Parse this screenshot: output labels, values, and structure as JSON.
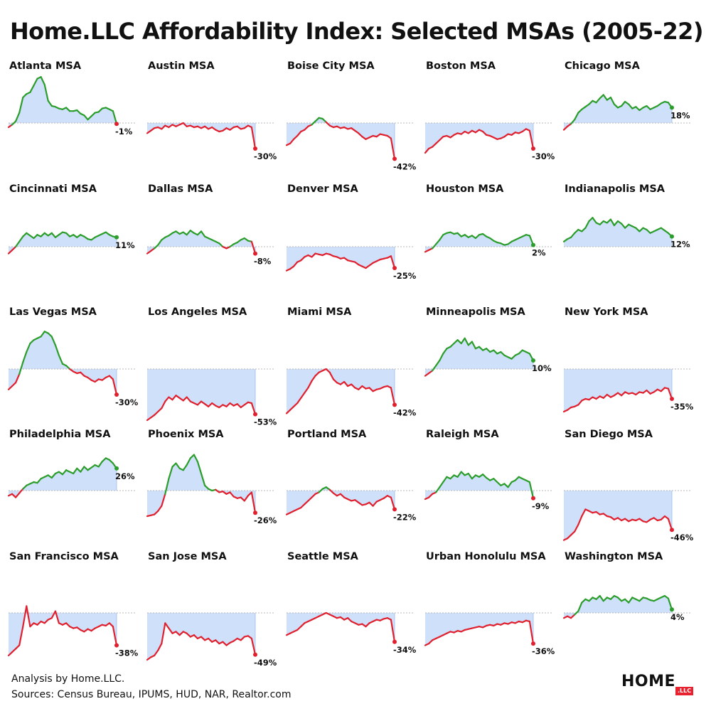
{
  "title": "Home.LLC Affordability Index: Selected MSAs (2005-22)",
  "footer": {
    "analysis": "Analysis by Home.LLC.",
    "sources": "Sources: Census Bureau, IPUMS, HUD, NAR, Realtor.com"
  },
  "logo": {
    "word": "HOME",
    "badge": ".LLC"
  },
  "colors": {
    "positive": "#2a9d2a",
    "negative": "#e0202e",
    "fill": "#cfe0fa",
    "baseline": "#b9b9b9",
    "dot": "#e0202e"
  },
  "chart_data": [
    {
      "type": "area",
      "title": "Atlanta MSA",
      "last_label": "-1%",
      "values": [
        -5,
        -2,
        2,
        12,
        30,
        34,
        36,
        44,
        52,
        54,
        45,
        26,
        20,
        19,
        17,
        16,
        18,
        14,
        14,
        15,
        11,
        9,
        4,
        8,
        12,
        13,
        17,
        18,
        16,
        14,
        -1
      ]
    },
    {
      "type": "area",
      "title": "Austin MSA",
      "last_label": "-30%",
      "values": [
        -12,
        -9,
        -6,
        -5,
        -7,
        -3,
        -5,
        -2,
        -4,
        -2,
        0,
        -4,
        -3,
        -5,
        -4,
        -6,
        -4,
        -7,
        -5,
        -8,
        -10,
        -9,
        -6,
        -8,
        -5,
        -4,
        -7,
        -6,
        -3,
        -5,
        -30
      ]
    },
    {
      "type": "area",
      "title": "Boise City MSA",
      "last_label": "-42%",
      "values": [
        -26,
        -24,
        -19,
        -15,
        -10,
        -8,
        -4,
        -2,
        2,
        6,
        5,
        1,
        -3,
        -5,
        -4,
        -6,
        -5,
        -7,
        -6,
        -9,
        -12,
        -16,
        -19,
        -17,
        -15,
        -16,
        -13,
        -14,
        -15,
        -18,
        -42
      ]
    },
    {
      "type": "area",
      "title": "Boston MSA",
      "last_label": "-30%",
      "values": [
        -35,
        -30,
        -28,
        -24,
        -20,
        -16,
        -15,
        -17,
        -14,
        -12,
        -13,
        -10,
        -12,
        -9,
        -11,
        -8,
        -10,
        -14,
        -15,
        -17,
        -19,
        -18,
        -16,
        -13,
        -14,
        -11,
        -12,
        -10,
        -7,
        -9,
        -30
      ]
    },
    {
      "type": "area",
      "title": "Chicago MSA",
      "last_label": "18%",
      "values": [
        -8,
        -4,
        -1,
        4,
        12,
        16,
        19,
        22,
        26,
        24,
        29,
        33,
        27,
        30,
        22,
        18,
        20,
        25,
        22,
        17,
        19,
        15,
        18,
        20,
        16,
        18,
        20,
        23,
        25,
        24,
        18
      ]
    },
    {
      "type": "area",
      "title": "Cincinnati MSA",
      "last_label": "11%",
      "values": [
        -8,
        -4,
        0,
        6,
        12,
        16,
        13,
        10,
        14,
        12,
        16,
        13,
        16,
        11,
        14,
        17,
        16,
        12,
        14,
        11,
        14,
        12,
        9,
        8,
        11,
        13,
        15,
        17,
        14,
        12,
        11
      ]
    },
    {
      "type": "area",
      "title": "Dallas MSA",
      "last_label": "-8%",
      "values": [
        -8,
        -5,
        -2,
        2,
        8,
        11,
        13,
        16,
        18,
        15,
        17,
        14,
        19,
        16,
        14,
        18,
        12,
        10,
        8,
        6,
        4,
        0,
        -2,
        0,
        3,
        5,
        8,
        10,
        7,
        6,
        -8
      ]
    },
    {
      "type": "area",
      "title": "Denver MSA",
      "last_label": "-25%",
      "values": [
        -28,
        -26,
        -23,
        -18,
        -16,
        -12,
        -10,
        -12,
        -8,
        -9,
        -10,
        -8,
        -9,
        -11,
        -12,
        -14,
        -13,
        -16,
        -17,
        -18,
        -21,
        -23,
        -25,
        -22,
        -19,
        -17,
        -15,
        -14,
        -13,
        -11,
        -25
      ]
    },
    {
      "type": "area",
      "title": "Houston MSA",
      "last_label": "2%",
      "values": [
        -6,
        -4,
        -2,
        3,
        8,
        14,
        16,
        17,
        15,
        16,
        12,
        14,
        11,
        13,
        10,
        14,
        15,
        12,
        10,
        7,
        5,
        4,
        2,
        3,
        6,
        8,
        10,
        12,
        14,
        13,
        2
      ]
    },
    {
      "type": "area",
      "title": "Indianapolis MSA",
      "last_label": "12%",
      "values": [
        6,
        9,
        11,
        16,
        20,
        18,
        22,
        30,
        34,
        28,
        26,
        30,
        28,
        32,
        25,
        30,
        27,
        22,
        26,
        24,
        22,
        18,
        22,
        20,
        16,
        18,
        20,
        22,
        19,
        16,
        12
      ]
    },
    {
      "type": "area",
      "title": "Las Vegas MSA",
      "last_label": "-30%",
      "values": [
        -24,
        -20,
        -16,
        -6,
        8,
        20,
        30,
        34,
        36,
        38,
        44,
        42,
        38,
        28,
        16,
        6,
        4,
        0,
        -3,
        -5,
        -4,
        -8,
        -10,
        -13,
        -15,
        -12,
        -13,
        -10,
        -8,
        -12,
        -30
      ]
    },
    {
      "type": "area",
      "title": "Los Angeles MSA",
      "last_label": "-53%",
      "values": [
        -60,
        -57,
        -54,
        -50,
        -46,
        -38,
        -33,
        -36,
        -31,
        -34,
        -37,
        -33,
        -38,
        -40,
        -42,
        -38,
        -41,
        -44,
        -40,
        -43,
        -45,
        -42,
        -44,
        -40,
        -43,
        -41,
        -45,
        -42,
        -39,
        -40,
        -53
      ]
    },
    {
      "type": "area",
      "title": "Miami MSA",
      "last_label": "-42%",
      "values": [
        -52,
        -48,
        -44,
        -40,
        -34,
        -28,
        -22,
        -14,
        -8,
        -4,
        -2,
        0,
        -4,
        -12,
        -16,
        -18,
        -15,
        -20,
        -18,
        -22,
        -24,
        -20,
        -23,
        -22,
        -26,
        -24,
        -23,
        -21,
        -20,
        -22,
        -42
      ]
    },
    {
      "type": "area",
      "title": "Minneapolis MSA",
      "last_label": "10%",
      "values": [
        -8,
        -5,
        -2,
        4,
        10,
        18,
        24,
        26,
        30,
        34,
        30,
        36,
        28,
        32,
        24,
        26,
        22,
        24,
        20,
        22,
        18,
        20,
        16,
        14,
        12,
        16,
        18,
        22,
        20,
        18,
        10
      ]
    },
    {
      "type": "area",
      "title": "New York MSA",
      "last_label": "-35%",
      "values": [
        -50,
        -48,
        -45,
        -44,
        -42,
        -37,
        -35,
        -36,
        -33,
        -35,
        -32,
        -34,
        -30,
        -33,
        -31,
        -28,
        -31,
        -27,
        -29,
        -28,
        -30,
        -27,
        -28,
        -25,
        -29,
        -27,
        -24,
        -26,
        -22,
        -23,
        -35
      ]
    },
    {
      "type": "area",
      "title": "Philadelphia MSA",
      "last_label": "26%",
      "values": [
        -6,
        -4,
        -8,
        -3,
        2,
        6,
        8,
        10,
        9,
        14,
        16,
        18,
        15,
        20,
        22,
        19,
        24,
        22,
        20,
        26,
        22,
        28,
        24,
        27,
        30,
        28,
        34,
        38,
        36,
        32,
        26
      ]
    },
    {
      "type": "area",
      "title": "Phoenix MSA",
      "last_label": "-26%",
      "values": [
        -30,
        -29,
        -28,
        -24,
        -18,
        -4,
        14,
        28,
        32,
        26,
        24,
        30,
        38,
        42,
        34,
        20,
        6,
        2,
        0,
        1,
        -2,
        -1,
        -4,
        -2,
        -7,
        -9,
        -8,
        -12,
        -6,
        -2,
        -26
      ]
    },
    {
      "type": "area",
      "title": "Portland MSA",
      "last_label": "-22%",
      "values": [
        -28,
        -26,
        -24,
        -22,
        -20,
        -16,
        -12,
        -8,
        -4,
        -2,
        2,
        4,
        1,
        -3,
        -6,
        -4,
        -8,
        -10,
        -12,
        -11,
        -14,
        -17,
        -16,
        -14,
        -18,
        -13,
        -11,
        -9,
        -6,
        -8,
        -22
      ]
    },
    {
      "type": "area",
      "title": "Raleigh MSA",
      "last_label": "-9%",
      "values": [
        -10,
        -8,
        -4,
        -2,
        4,
        10,
        16,
        14,
        18,
        16,
        22,
        18,
        20,
        14,
        18,
        16,
        19,
        15,
        12,
        14,
        10,
        6,
        8,
        4,
        10,
        12,
        16,
        14,
        12,
        10,
        -9
      ]
    },
    {
      "type": "area",
      "title": "San Diego MSA",
      "last_label": "-46%",
      "values": [
        -58,
        -56,
        -52,
        -48,
        -40,
        -30,
        -22,
        -24,
        -26,
        -25,
        -28,
        -27,
        -30,
        -31,
        -34,
        -32,
        -35,
        -33,
        -36,
        -34,
        -35,
        -33,
        -36,
        -37,
        -34,
        -32,
        -35,
        -34,
        -30,
        -33,
        -46
      ]
    },
    {
      "type": "area",
      "title": "San Francisco MSA",
      "last_label": "-38%",
      "values": [
        -50,
        -46,
        -42,
        -38,
        -16,
        8,
        -16,
        -12,
        -14,
        -10,
        -12,
        -8,
        -6,
        2,
        -12,
        -14,
        -12,
        -16,
        -18,
        -17,
        -20,
        -22,
        -19,
        -21,
        -18,
        -16,
        -14,
        -15,
        -12,
        -16,
        -38
      ]
    },
    {
      "type": "area",
      "title": "San Jose MSA",
      "last_label": "-49%",
      "values": [
        -55,
        -52,
        -50,
        -44,
        -36,
        -12,
        -18,
        -24,
        -22,
        -26,
        -22,
        -24,
        -28,
        -26,
        -30,
        -28,
        -32,
        -30,
        -34,
        -32,
        -36,
        -34,
        -38,
        -35,
        -33,
        -30,
        -32,
        -28,
        -27,
        -30,
        -49
      ]
    },
    {
      "type": "area",
      "title": "Seattle MSA",
      "last_label": "-34%",
      "values": [
        -26,
        -24,
        -22,
        -20,
        -16,
        -12,
        -10,
        -8,
        -6,
        -4,
        -2,
        0,
        -2,
        -4,
        -6,
        -5,
        -8,
        -6,
        -10,
        -12,
        -14,
        -13,
        -16,
        -12,
        -10,
        -8,
        -9,
        -7,
        -6,
        -8,
        -34
      ]
    },
    {
      "type": "area",
      "title": "Urban Honolulu MSA",
      "last_label": "-36%",
      "values": [
        -38,
        -36,
        -32,
        -30,
        -28,
        -26,
        -24,
        -22,
        -23,
        -21,
        -22,
        -20,
        -19,
        -18,
        -17,
        -16,
        -17,
        -15,
        -14,
        -15,
        -13,
        -14,
        -12,
        -13,
        -11,
        -12,
        -10,
        -11,
        -9,
        -10,
        -36
      ]
    },
    {
      "type": "area",
      "title": "Washington MSA",
      "last_label": "4%",
      "values": [
        -6,
        -4,
        -6,
        -2,
        2,
        12,
        16,
        14,
        18,
        16,
        20,
        14,
        18,
        16,
        20,
        18,
        14,
        16,
        12,
        18,
        16,
        14,
        18,
        17,
        15,
        14,
        16,
        18,
        20,
        17,
        4
      ]
    }
  ]
}
